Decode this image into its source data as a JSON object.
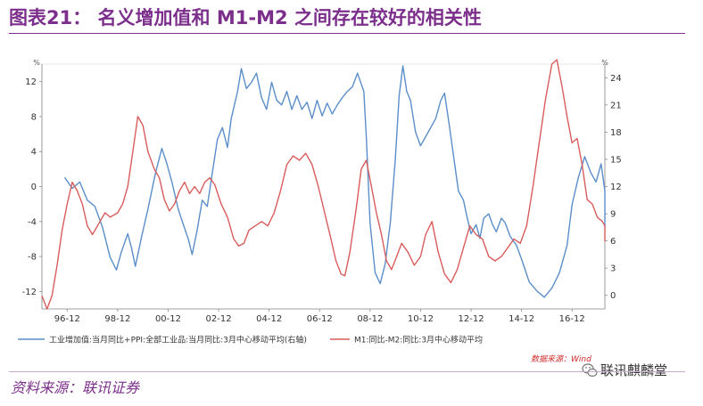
{
  "header": {
    "title": "图表21：  名义增加值和 M1-M2 之间存在较好的相关性"
  },
  "footer": {
    "source": "资料来源：联讯证券",
    "wind_mark": "数据来源：Wind",
    "wechat_account": "联讯麒麟堂"
  },
  "chart_data": {
    "type": "line",
    "left_axis": {
      "unit": "%",
      "min": -14,
      "max": 14,
      "ticks": [
        -12,
        -8,
        -4,
        0,
        4,
        8,
        12
      ]
    },
    "right_axis": {
      "unit": "%",
      "min": -1.5,
      "max": 25.5,
      "ticks": [
        0,
        3,
        6,
        9,
        12,
        15,
        18,
        21,
        24
      ]
    },
    "x_axis": {
      "start": 1996,
      "end": 2018.3,
      "ticks": [
        {
          "label": "96-12",
          "pos": 1997
        },
        {
          "label": "98-12",
          "pos": 1999
        },
        {
          "label": "00-12",
          "pos": 2001
        },
        {
          "label": "02-12",
          "pos": 2003
        },
        {
          "label": "04-12",
          "pos": 2005
        },
        {
          "label": "06-12",
          "pos": 2007
        },
        {
          "label": "08-12",
          "pos": 2009
        },
        {
          "label": "10-12",
          "pos": 2011
        },
        {
          "label": "12-12",
          "pos": 2013
        },
        {
          "label": "14-12",
          "pos": 2015
        },
        {
          "label": "16-12",
          "pos": 2017
        }
      ]
    },
    "series": [
      {
        "name": "工业增加值:当月同比+PPI:全部工业品:当月同比:3月中心移动平均(右轴)",
        "axis": "right",
        "color": "#5b8ec9",
        "points": [
          [
            1996.9,
            13
          ],
          [
            1997.2,
            11.8
          ],
          [
            1997.5,
            12.5
          ],
          [
            1997.8,
            10.5
          ],
          [
            1998.1,
            9.8
          ],
          [
            1998.4,
            7.5
          ],
          [
            1998.7,
            4.2
          ],
          [
            1998.95,
            2.8
          ],
          [
            1999.15,
            4.8
          ],
          [
            1999.4,
            6.8
          ],
          [
            1999.55,
            5.2
          ],
          [
            1999.7,
            3.2
          ],
          [
            1999.95,
            6.5
          ],
          [
            2000.2,
            9.5
          ],
          [
            2000.5,
            13.5
          ],
          [
            2000.75,
            16.2
          ],
          [
            2000.95,
            14.5
          ],
          [
            2001.15,
            12.5
          ],
          [
            2001.4,
            9.5
          ],
          [
            2001.6,
            7.8
          ],
          [
            2001.8,
            6.2
          ],
          [
            2001.95,
            4.5
          ],
          [
            2002.15,
            7.2
          ],
          [
            2002.35,
            10.5
          ],
          [
            2002.55,
            9.8
          ],
          [
            2002.75,
            13.5
          ],
          [
            2002.95,
            17.2
          ],
          [
            2003.15,
            18.5
          ],
          [
            2003.35,
            16.3
          ],
          [
            2003.5,
            19.5
          ],
          [
            2003.75,
            22.5
          ],
          [
            2003.9,
            25
          ],
          [
            2004.1,
            22.8
          ],
          [
            2004.3,
            23.5
          ],
          [
            2004.5,
            24.5
          ],
          [
            2004.7,
            21.8
          ],
          [
            2004.9,
            20.5
          ],
          [
            2005.1,
            23.5
          ],
          [
            2005.3,
            21.5
          ],
          [
            2005.5,
            21
          ],
          [
            2005.7,
            22.5
          ],
          [
            2005.9,
            20.5
          ],
          [
            2006.1,
            22
          ],
          [
            2006.3,
            20.5
          ],
          [
            2006.5,
            21.3
          ],
          [
            2006.7,
            19.5
          ],
          [
            2006.9,
            21.5
          ],
          [
            2007.1,
            19.8
          ],
          [
            2007.3,
            21.2
          ],
          [
            2007.5,
            20
          ],
          [
            2007.7,
            21
          ],
          [
            2007.9,
            21.8
          ],
          [
            2008.1,
            22.5
          ],
          [
            2008.3,
            23
          ],
          [
            2008.5,
            24.5
          ],
          [
            2008.75,
            22.5
          ],
          [
            2008.85,
            17.5
          ],
          [
            2009.0,
            8
          ],
          [
            2009.2,
            2.5
          ],
          [
            2009.4,
            1.3
          ],
          [
            2009.6,
            3.5
          ],
          [
            2009.8,
            8
          ],
          [
            2010.0,
            15
          ],
          [
            2010.15,
            22
          ],
          [
            2010.3,
            25.3
          ],
          [
            2010.45,
            22.5
          ],
          [
            2010.6,
            21.5
          ],
          [
            2010.8,
            18
          ],
          [
            2011.0,
            16.5
          ],
          [
            2011.2,
            17.5
          ],
          [
            2011.4,
            18.5
          ],
          [
            2011.6,
            19.5
          ],
          [
            2011.8,
            21.5
          ],
          [
            2011.95,
            22.3
          ],
          [
            2012.15,
            18.5
          ],
          [
            2012.35,
            14.5
          ],
          [
            2012.5,
            11.5
          ],
          [
            2012.7,
            10.5
          ],
          [
            2012.85,
            8.5
          ],
          [
            2013.0,
            6.8
          ],
          [
            2013.2,
            7.8
          ],
          [
            2013.35,
            6.3
          ],
          [
            2013.5,
            8.5
          ],
          [
            2013.7,
            9
          ],
          [
            2013.85,
            7.8
          ],
          [
            2014.0,
            7
          ],
          [
            2014.2,
            8.5
          ],
          [
            2014.35,
            8
          ],
          [
            2014.55,
            6.5
          ],
          [
            2014.8,
            5.5
          ],
          [
            2015.0,
            4
          ],
          [
            2015.3,
            1.5
          ],
          [
            2015.6,
            0.5
          ],
          [
            2015.9,
            -0.2
          ],
          [
            2016.2,
            0.8
          ],
          [
            2016.5,
            2.5
          ],
          [
            2016.8,
            5.5
          ],
          [
            2017.0,
            10
          ],
          [
            2017.25,
            13
          ],
          [
            2017.5,
            15.3
          ],
          [
            2017.75,
            13.5
          ],
          [
            2017.95,
            12.5
          ],
          [
            2018.15,
            14.5
          ],
          [
            2018.3,
            11.5
          ],
          [
            2018.45,
            7.5
          ],
          [
            2018.6,
            10.5
          ],
          [
            2018.8,
            10.2
          ],
          [
            2019.05,
            8.5
          ]
        ]
      },
      {
        "name": "M1:同比-M2:同比:3月中心移动平均",
        "axis": "left",
        "color": "#d95c5c",
        "points": [
          [
            1996.0,
            -12.5
          ],
          [
            1996.2,
            -14
          ],
          [
            1996.4,
            -12.5
          ],
          [
            1996.6,
            -9
          ],
          [
            1996.8,
            -5
          ],
          [
            1997.0,
            -2
          ],
          [
            1997.2,
            0.5
          ],
          [
            1997.4,
            -0.5
          ],
          [
            1997.6,
            -2
          ],
          [
            1997.8,
            -4.5
          ],
          [
            1998.0,
            -5.5
          ],
          [
            1998.2,
            -4.5
          ],
          [
            1998.5,
            -3
          ],
          [
            1998.7,
            -3.5
          ],
          [
            1999.0,
            -3
          ],
          [
            1999.2,
            -2
          ],
          [
            1999.4,
            0
          ],
          [
            1999.6,
            4
          ],
          [
            1999.8,
            8
          ],
          [
            2000.0,
            7
          ],
          [
            2000.2,
            4
          ],
          [
            2000.45,
            2
          ],
          [
            2000.65,
            1
          ],
          [
            2000.85,
            -1.5
          ],
          [
            2001.05,
            -2.8
          ],
          [
            2001.25,
            -2
          ],
          [
            2001.45,
            -0.5
          ],
          [
            2001.65,
            0.5
          ],
          [
            2001.85,
            -0.8
          ],
          [
            2002.05,
            0
          ],
          [
            2002.25,
            -0.8
          ],
          [
            2002.45,
            0.5
          ],
          [
            2002.65,
            1
          ],
          [
            2002.85,
            0.2
          ],
          [
            2003.1,
            -2
          ],
          [
            2003.35,
            -3.5
          ],
          [
            2003.6,
            -6
          ],
          [
            2003.8,
            -6.8
          ],
          [
            2004.0,
            -6.5
          ],
          [
            2004.2,
            -5
          ],
          [
            2004.45,
            -4.5
          ],
          [
            2004.7,
            -4
          ],
          [
            2004.95,
            -4.5
          ],
          [
            2005.2,
            -3
          ],
          [
            2005.45,
            -0.5
          ],
          [
            2005.7,
            2.5
          ],
          [
            2005.95,
            3.5
          ],
          [
            2006.2,
            3
          ],
          [
            2006.45,
            3.8
          ],
          [
            2006.7,
            2.5
          ],
          [
            2006.95,
            0
          ],
          [
            2007.2,
            -3
          ],
          [
            2007.45,
            -6
          ],
          [
            2007.65,
            -8.5
          ],
          [
            2007.85,
            -10
          ],
          [
            2008.0,
            -10.2
          ],
          [
            2008.2,
            -7.5
          ],
          [
            2008.45,
            -2.5
          ],
          [
            2008.65,
            2
          ],
          [
            2008.85,
            3
          ],
          [
            2009.05,
            0
          ],
          [
            2009.25,
            -3
          ],
          [
            2009.45,
            -5.5
          ],
          [
            2009.65,
            -8.5
          ],
          [
            2009.85,
            -9.5
          ],
          [
            2010.05,
            -8
          ],
          [
            2010.25,
            -6.5
          ],
          [
            2010.5,
            -7.5
          ],
          [
            2010.75,
            -9
          ],
          [
            2011.0,
            -8
          ],
          [
            2011.2,
            -5.5
          ],
          [
            2011.45,
            -4
          ],
          [
            2011.7,
            -7.5
          ],
          [
            2011.95,
            -10
          ],
          [
            2012.2,
            -11
          ],
          [
            2012.45,
            -9.5
          ],
          [
            2012.7,
            -7
          ],
          [
            2012.95,
            -4.5
          ],
          [
            2013.2,
            -5.5
          ],
          [
            2013.45,
            -6
          ],
          [
            2013.7,
            -8
          ],
          [
            2013.95,
            -8.5
          ],
          [
            2014.2,
            -8
          ],
          [
            2014.45,
            -7
          ],
          [
            2014.7,
            -6
          ],
          [
            2014.95,
            -6.5
          ],
          [
            2015.2,
            -4.5
          ],
          [
            2015.45,
            0
          ],
          [
            2015.7,
            5
          ],
          [
            2015.95,
            10
          ],
          [
            2016.2,
            14
          ],
          [
            2016.4,
            14.5
          ],
          [
            2016.6,
            11.5
          ],
          [
            2016.8,
            8
          ],
          [
            2017.0,
            5
          ],
          [
            2017.2,
            5.5
          ],
          [
            2017.4,
            2.5
          ],
          [
            2017.6,
            -1.5
          ],
          [
            2017.8,
            -2
          ],
          [
            2018.0,
            -3.5
          ],
          [
            2018.2,
            -4
          ],
          [
            2018.4,
            -4.5
          ],
          [
            2018.6,
            -5.5
          ],
          [
            2018.8,
            -6.2
          ],
          [
            2019.05,
            -6
          ]
        ]
      }
    ]
  }
}
